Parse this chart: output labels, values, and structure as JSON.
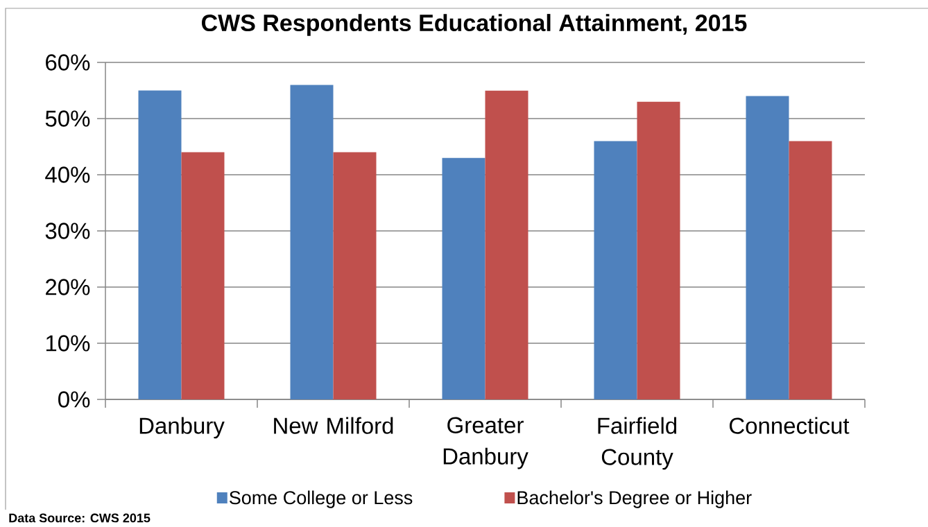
{
  "chart_data": {
    "type": "bar",
    "title": "CWS Respondents Educational Attainment, 2015",
    "categories": [
      "Danbury",
      "New Milford",
      "Greater Danbury",
      "Fairfield County",
      "Connecticut"
    ],
    "series": [
      {
        "name": "Some College or Less",
        "color": "#4f81bd",
        "values": [
          55,
          56,
          43,
          46,
          54
        ]
      },
      {
        "name": "Bachelor's Degree or Higher",
        "color": "#c0504d",
        "values": [
          44,
          44,
          55,
          53,
          46
        ]
      }
    ],
    "ylim": [
      0,
      60
    ],
    "yticks": [
      {
        "value": 0,
        "label": "0%"
      },
      {
        "value": 10,
        "label": "10%"
      },
      {
        "value": 20,
        "label": "20%"
      },
      {
        "value": 30,
        "label": "30%"
      },
      {
        "value": 40,
        "label": "40%"
      },
      {
        "value": 50,
        "label": "50%"
      },
      {
        "value": 60,
        "label": "60%"
      }
    ],
    "grid": "y",
    "legend": "bottom",
    "annotations": [
      "Data Source: CWS 2015"
    ]
  }
}
